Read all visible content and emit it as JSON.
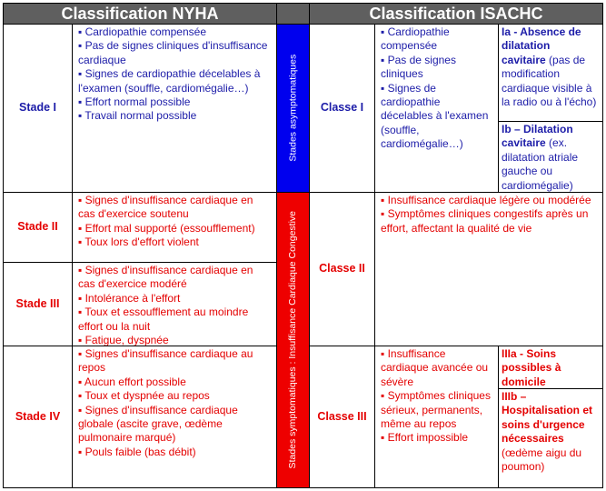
{
  "header": {
    "nyha": "Classification NYHA",
    "isachc": "Classification ISACHC"
  },
  "colors": {
    "asymptomatic": "#0000ee",
    "symptomatic": "#ee0000",
    "header": "#5f5f5f"
  },
  "nyha": [
    {
      "label": "Stade I",
      "items": [
        "▪ Cardiopathie compensée",
        "▪ Pas de signes cliniques d'insuffisance cardiaque",
        "▪ Signes de cardiopathie décelables à l'examen (souffle, cardiomégalie…)",
        "▪ Effort normal possible",
        "▪ Travail normal possible"
      ]
    },
    {
      "label": "Stade II",
      "items": [
        "▪ Signes d'insuffisance cardiaque en cas d'exercice soutenu",
        "▪ Effort mal supporté (essoufflement)",
        "▪ Toux lors d'effort violent"
      ]
    },
    {
      "label": "Stade III",
      "items": [
        "▪ Signes d'insuffisance cardiaque en cas d'exercice modéré",
        "▪ Intolérance à l'effort",
        "▪ Toux et essoufflement au moindre effort ou la nuit",
        "▪ Fatigue, dyspnée"
      ]
    },
    {
      "label": "Stade IV",
      "items": [
        "▪ Signes d'insuffisance cardiaque au repos",
        "▪ Aucun effort possible",
        "▪ Toux et dyspnée au repos",
        "▪ Signes d'insuffisance cardiaque globale (ascite grave, œdème pulmonaire marqué)",
        "▪ Pouls faible (bas débit)"
      ]
    }
  ],
  "bands": {
    "asymptomatic": "Stades asymptomatiques",
    "symptomatic": "Stades symptomatiques : Insuffisance Cardiaque Congestive"
  },
  "isachc": {
    "classe1": {
      "label": "Classe I",
      "items": [
        "▪ Cardiopathie compensée",
        "▪ Pas de signes cliniques",
        "▪ Signes de cardiopathie décelables à l'examen (souffle, cardiomégalie…)"
      ],
      "ia": {
        "title": "Ia - Absence de dilatation cavitaire",
        "text": " (pas de modification cardiaque visible à la radio ou à l'écho)"
      },
      "ib": {
        "title": "Ib – Dilatation cavitaire",
        "text": " (ex. dilatation atriale gauche ou cardiomégalie)"
      }
    },
    "classe2": {
      "label": "Classe II",
      "items": [
        "▪ Insuffisance cardiaque légère ou modérée",
        "▪ Symptômes cliniques congestifs après un effort, affectant la qualité de vie"
      ]
    },
    "classe3": {
      "label": "Classe III",
      "items": [
        "▪ Insuffisance cardiaque avancée ou sévère",
        "▪ Symptômes cliniques sérieux, permanents, même au repos",
        "▪ Effort impossible"
      ],
      "iiia": {
        "title": "IIIa - Soins possibles à domicile",
        "text": ""
      },
      "iiib": {
        "title": "IIIb – Hospitalisation et soins d'urgence nécessaires",
        "text": " (œdème aigu du poumon)"
      }
    }
  }
}
